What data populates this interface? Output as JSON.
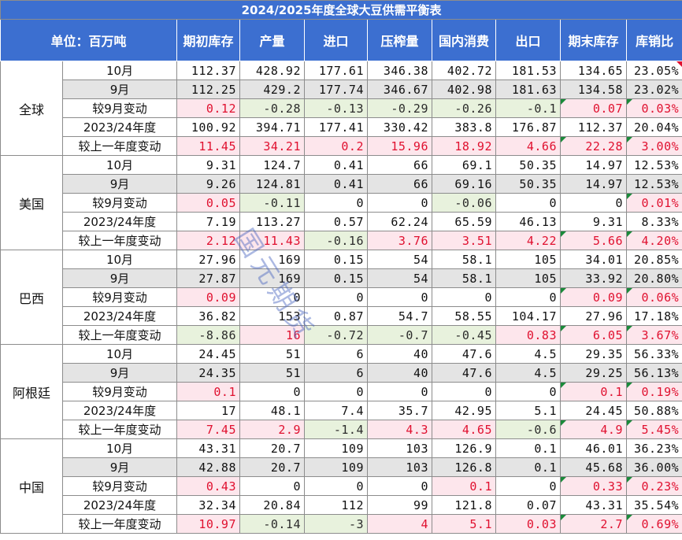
{
  "title": "2024/2025年度全球大豆供需平衡表",
  "unit_label": "单位：百万吨",
  "columns": [
    "期初库存",
    "产量",
    "进口",
    "压榨量",
    "国内消费",
    "出口",
    "期末库存",
    "库销比"
  ],
  "row_labels": [
    "10月",
    "9月",
    "较9月变动",
    "2023/24年度",
    "较上一年度变动"
  ],
  "watermark": "国元期货",
  "colors": {
    "header_bg": "#3c6fd0",
    "header_text": "#ffffff",
    "positive_text": "#e0102f",
    "positive_bg": "#fde6ec",
    "negative_bg": "#e8f2dd",
    "gray_row": "#e4e4e4"
  },
  "regions": [
    {
      "name": "全球",
      "rows": [
        [
          "112.37",
          "428.92",
          "177.61",
          "346.38",
          "402.72",
          "181.53",
          "134.65",
          "23.05%"
        ],
        [
          "112.25",
          "429.2",
          "177.74",
          "346.67",
          "402.98",
          "181.63",
          "134.58",
          "23.02%"
        ],
        [
          "0.12",
          "-0.28",
          "-0.13",
          "-0.29",
          "-0.26",
          "-0.1",
          "0.07",
          "0.03%"
        ],
        [
          "100.92",
          "394.71",
          "177.41",
          "330.42",
          "383.8",
          "176.87",
          "112.37",
          "20.04%"
        ],
        [
          "11.45",
          "34.21",
          "0.2",
          "15.96",
          "18.92",
          "4.66",
          "22.28",
          "3.00%"
        ]
      ]
    },
    {
      "name": "美国",
      "rows": [
        [
          "9.31",
          "124.7",
          "0.41",
          "66",
          "69.1",
          "50.35",
          "14.97",
          "12.53%"
        ],
        [
          "9.26",
          "124.81",
          "0.41",
          "66",
          "69.16",
          "50.35",
          "14.97",
          "12.53%"
        ],
        [
          "0.05",
          "-0.11",
          "0",
          "0",
          "-0.06",
          "0",
          "0",
          "0.01%"
        ],
        [
          "7.19",
          "113.27",
          "0.57",
          "62.24",
          "65.59",
          "46.13",
          "9.31",
          "8.33%"
        ],
        [
          "2.12",
          "11.43",
          "-0.16",
          "3.76",
          "3.51",
          "4.22",
          "5.66",
          "4.20%"
        ]
      ]
    },
    {
      "name": "巴西",
      "rows": [
        [
          "27.96",
          "169",
          "0.15",
          "54",
          "58.1",
          "105",
          "34.01",
          "20.85%"
        ],
        [
          "27.87",
          "169",
          "0.15",
          "54",
          "58.1",
          "105",
          "33.92",
          "20.80%"
        ],
        [
          "0.09",
          "0",
          "0",
          "0",
          "0",
          "0",
          "0.09",
          "0.06%"
        ],
        [
          "36.82",
          "153",
          "0.87",
          "54.7",
          "58.55",
          "104.17",
          "27.96",
          "17.18%"
        ],
        [
          "-8.86",
          "16",
          "-0.72",
          "-0.7",
          "-0.45",
          "0.83",
          "6.05",
          "3.67%"
        ]
      ]
    },
    {
      "name": "阿根廷",
      "rows": [
        [
          "24.45",
          "51",
          "6",
          "40",
          "47.6",
          "4.5",
          "29.35",
          "56.33%"
        ],
        [
          "24.35",
          "51",
          "6",
          "40",
          "47.6",
          "4.5",
          "29.25",
          "56.13%"
        ],
        [
          "0.1",
          "0",
          "0",
          "0",
          "0",
          "0",
          "0.1",
          "0.19%"
        ],
        [
          "17",
          "48.1",
          "7.4",
          "35.7",
          "42.95",
          "5.1",
          "24.45",
          "50.88%"
        ],
        [
          "7.45",
          "2.9",
          "-1.4",
          "4.3",
          "4.65",
          "-0.6",
          "4.9",
          "5.45%"
        ]
      ]
    },
    {
      "name": "中国",
      "rows": [
        [
          "43.31",
          "20.7",
          "109",
          "103",
          "126.9",
          "0.1",
          "46.01",
          "36.23%"
        ],
        [
          "42.88",
          "20.7",
          "109",
          "103",
          "126.8",
          "0.1",
          "45.68",
          "36.00%"
        ],
        [
          "0.43",
          "0",
          "0",
          "0",
          "0.1",
          "0",
          "0.33",
          "0.23%"
        ],
        [
          "32.34",
          "20.84",
          "112",
          "99",
          "121.8",
          "0.07",
          "43.31",
          "35.54%"
        ],
        [
          "10.97",
          "-0.14",
          "-3",
          "4",
          "5.1",
          "0.03",
          "2.7",
          "0.69%"
        ]
      ]
    }
  ]
}
